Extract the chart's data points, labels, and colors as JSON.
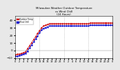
{
  "title_line1": "Milwaukee Weather Outdoor Temperature",
  "title_line2": "vs Wind Chill",
  "title_line3": "(24 Hours)",
  "background_color": "#e8e8e8",
  "plot_background": "#ffffff",
  "temp_color": "#cc0000",
  "wind_chill_color": "#0000cc",
  "dot_color": "#000000",
  "ylim": [
    -10,
    45
  ],
  "xlim": [
    0,
    48
  ],
  "yticks": [
    -10,
    0,
    10,
    20,
    30,
    40
  ],
  "xtick_labels": [
    "0",
    "2",
    "4",
    "6",
    "8",
    "10",
    "12",
    "2",
    "4",
    "6",
    "8",
    "10",
    "12",
    "2",
    "4",
    "6",
    "8",
    "10",
    "12",
    "2",
    "4",
    "6",
    "8",
    "10",
    "12"
  ],
  "vline_positions": [
    12,
    24,
    36
  ],
  "temp_data_x": [
    0,
    1,
    2,
    3,
    4,
    5,
    6,
    7,
    8,
    9,
    10,
    11,
    12,
    13,
    14,
    15,
    16,
    17,
    18,
    19,
    20,
    21,
    22,
    23,
    24,
    25,
    26,
    27,
    28,
    29,
    30,
    31,
    32,
    33,
    34,
    35,
    36,
    37,
    38,
    39,
    40,
    41,
    42,
    43,
    44,
    45,
    46,
    47,
    48
  ],
  "temp_data_y": [
    -6,
    -5,
    -5,
    -4,
    -3,
    -2,
    2,
    6,
    10,
    14,
    18,
    22,
    26,
    30,
    32,
    33,
    34,
    35,
    35,
    35,
    35,
    35,
    35,
    35,
    35,
    35,
    35,
    35,
    35,
    35,
    35,
    35,
    35,
    35,
    35,
    35,
    35,
    36,
    36,
    36,
    36,
    36,
    36,
    36,
    36,
    36,
    36,
    36,
    36
  ],
  "wind_data_x": [
    0,
    1,
    2,
    3,
    4,
    5,
    6,
    7,
    8,
    9,
    10,
    11,
    12,
    13,
    14,
    15,
    16,
    17,
    18,
    19,
    20,
    21,
    22,
    23,
    24,
    25,
    26,
    27,
    28,
    29,
    30,
    31,
    32,
    33,
    34,
    35,
    36,
    37,
    38,
    39,
    40,
    41,
    42,
    43,
    44,
    45,
    46,
    47,
    48
  ],
  "wind_data_y": [
    -8,
    -8,
    -7,
    -6,
    -5,
    -4,
    -1,
    3,
    7,
    11,
    15,
    19,
    23,
    27,
    29,
    30,
    31,
    32,
    32,
    32,
    32,
    32,
    32,
    32,
    32,
    32,
    32,
    32,
    32,
    32,
    32,
    32,
    32,
    32,
    32,
    32,
    32,
    33,
    33,
    33,
    33,
    33,
    33,
    33,
    33,
    33,
    33,
    33,
    33
  ],
  "legend_temp": "Outdoor Temp",
  "legend_wind": "Wind Chill"
}
